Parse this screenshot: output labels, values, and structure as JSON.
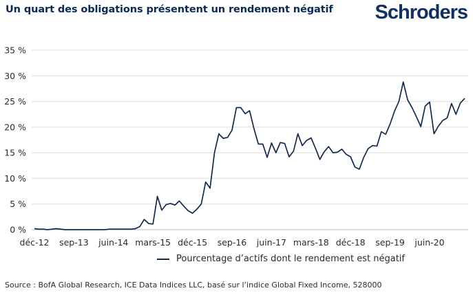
{
  "header": {
    "title": "Un quart des obligations présentent un rendement négatif",
    "logo": "Schroders"
  },
  "colors": {
    "title": "#0b2a55",
    "logo": "#11305f",
    "series": "#13294b",
    "grid": "#dcdcdc"
  },
  "footer": {
    "source": "Source : BofA Global Research, ICE Data Indices LLC, basé sur l’indice Global Fixed Income, 528000"
  },
  "chart_data": {
    "type": "line",
    "title": "Un quart des obligations présentent un rendement négatif",
    "xlabel": "",
    "ylabel": "",
    "ylim": [
      0,
      35
    ],
    "yticks": [
      0,
      5,
      10,
      15,
      20,
      25,
      30,
      35
    ],
    "ytick_labels": [
      "0 %",
      "5 %",
      "10 %",
      "15 %",
      "20 %",
      "25 %",
      "30 %",
      "35 %"
    ],
    "grid": true,
    "legend_position": "bottom",
    "x_start": "déc-12",
    "x_frequency": "monthly",
    "xtick_labels": [
      "déc-12",
      "sep-13",
      "juin-14",
      "mars-15",
      "déc-15",
      "sep-16",
      "juin-17",
      "mars-18",
      "déc-18",
      "sep-19",
      "juin-20"
    ],
    "xtick_index": [
      0,
      9,
      18,
      27,
      36,
      45,
      54,
      63,
      72,
      81,
      90
    ],
    "series": [
      {
        "name": "Pourcentage d’actifs dont le rendement est négatif",
        "values": [
          0.2,
          0.1,
          0.1,
          0.0,
          0.1,
          0.2,
          0.1,
          0.0,
          0.0,
          0.0,
          0.0,
          0.0,
          0.0,
          0.0,
          0.0,
          0.0,
          0.0,
          0.1,
          0.1,
          0.1,
          0.1,
          0.1,
          0.1,
          0.2,
          0.6,
          2.0,
          1.2,
          1.1,
          6.5,
          3.8,
          4.9,
          5.1,
          4.8,
          5.6,
          4.6,
          3.7,
          3.2,
          4.0,
          5.0,
          9.3,
          8.1,
          15.0,
          18.7,
          17.8,
          18.0,
          19.4,
          23.8,
          23.8,
          22.6,
          23.2,
          19.7,
          16.7,
          16.7,
          14.1,
          16.9,
          15.0,
          17.0,
          16.8,
          14.2,
          15.3,
          18.7,
          16.4,
          17.4,
          17.9,
          15.9,
          13.7,
          15.2,
          16.2,
          15.0,
          15.1,
          15.7,
          14.7,
          14.2,
          12.2,
          11.8,
          14.1,
          15.8,
          16.4,
          16.3,
          19.1,
          18.6,
          20.6,
          23.1,
          25.0,
          28.8,
          25.3,
          23.8,
          22.0,
          20.1,
          24.1,
          24.9,
          18.7,
          20.2,
          21.3,
          21.8,
          24.6,
          22.5,
          24.7,
          25.6
        ]
      }
    ]
  }
}
